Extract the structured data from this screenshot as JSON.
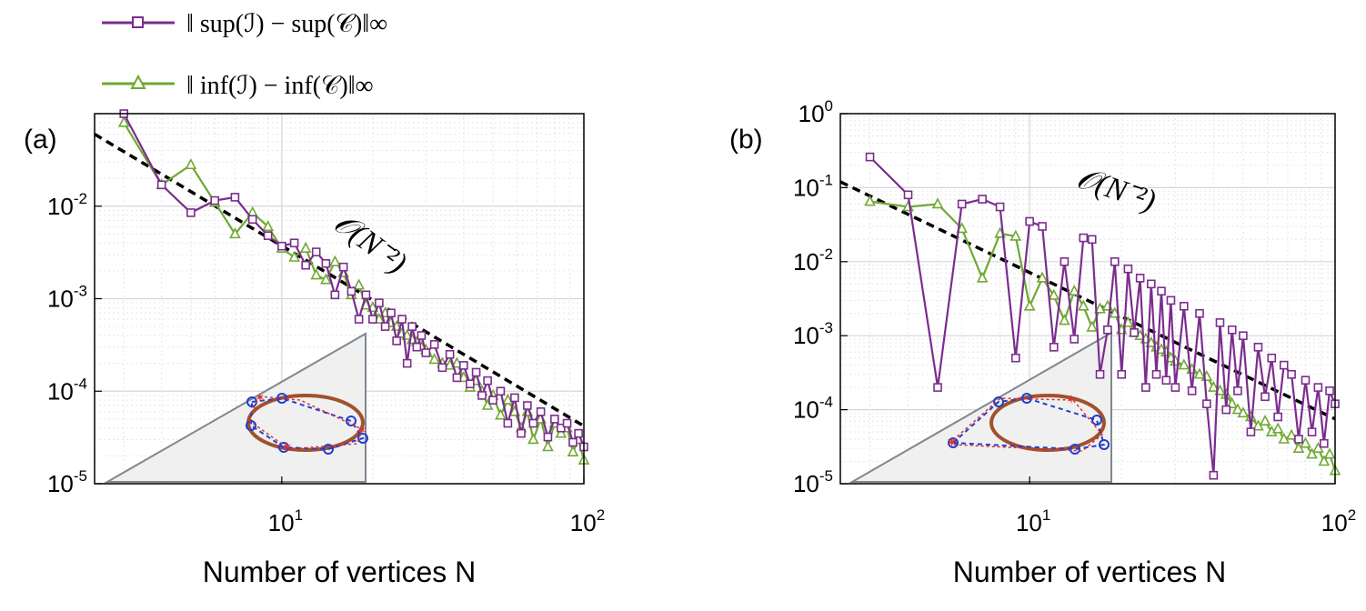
{
  "legend": {
    "items": [
      {
        "label": "‖ sup(ℐ) − sup(𝒞)‖∞",
        "color": "#7b2d8e",
        "marker": "square"
      },
      {
        "label": "‖ inf(ℐ) − inf(𝒞)‖∞",
        "color": "#6fa832",
        "marker": "triangle"
      }
    ]
  },
  "chart_data": [
    {
      "panel_label": "(a)",
      "type": "line",
      "x_scale": "log",
      "y_scale": "log",
      "xlim": [
        2.4,
        100
      ],
      "ylim": [
        1e-05,
        0.1
      ],
      "xlabel": "Number of vertices N",
      "ylabel": "",
      "x_ticks": [
        {
          "base": "10",
          "exp": "1",
          "value": 10
        },
        {
          "base": "10",
          "exp": "2",
          "value": 100
        }
      ],
      "y_ticks": [
        {
          "base": "10",
          "exp": "-2",
          "value": 0.01
        },
        {
          "base": "10",
          "exp": "-3",
          "value": 0.001
        },
        {
          "base": "10",
          "exp": "-4",
          "value": 0.0001
        },
        {
          "base": "10",
          "exp": "-5",
          "value": 1e-05
        }
      ],
      "grid": true,
      "annotation": "𝒪(N⁻²)",
      "reference_line": {
        "style": "dashed",
        "color": "#000000",
        "x": [
          2.4,
          100
        ],
        "y": [
          0.06,
          4.2e-05
        ]
      },
      "series": [
        {
          "color": "#7b2d8e",
          "marker": "square",
          "x": [
            3,
            4,
            5,
            6,
            7,
            8,
            9,
            10,
            11,
            12,
            13,
            14,
            15,
            16,
            17,
            18,
            19,
            20,
            21,
            22,
            23,
            24,
            25,
            26,
            27,
            28,
            29,
            30,
            32,
            34,
            36,
            38,
            40,
            42,
            44,
            46,
            48,
            50,
            53,
            56,
            59,
            62,
            65,
            68,
            72,
            76,
            80,
            84,
            88,
            92,
            96,
            100
          ],
          "y": [
            0.1,
            0.017,
            0.0085,
            0.0115,
            0.0125,
            0.0072,
            0.0048,
            0.0037,
            0.004,
            0.0023,
            0.0032,
            0.0024,
            0.0011,
            0.0022,
            0.0012,
            0.0006,
            0.0011,
            0.0006,
            0.0009,
            0.0005,
            0.0007,
            0.00035,
            0.0006,
            0.0002,
            0.0005,
            0.0003,
            0.0004,
            0.00026,
            0.00032,
            0.00018,
            0.00025,
            0.00014,
            0.00019,
            0.00012,
            0.00016,
            9e-05,
            0.00013,
            8e-05,
            0.0001,
            4.5e-05,
            8.5e-05,
            3.5e-05,
            7e-05,
            4.5e-05,
            6e-05,
            3.2e-05,
            5e-05,
            4e-05,
            4.5e-05,
            2.8e-05,
            3.5e-05,
            2.5e-05
          ]
        },
        {
          "color": "#6fa832",
          "marker": "triangle",
          "x": [
            3,
            4,
            5,
            6,
            7,
            8,
            9,
            10,
            11,
            12,
            13,
            14,
            15,
            16,
            17,
            18,
            19,
            20,
            21,
            22,
            23,
            24,
            25,
            26,
            27,
            28,
            29,
            30,
            32,
            34,
            36,
            38,
            40,
            42,
            44,
            46,
            48,
            50,
            53,
            56,
            59,
            62,
            65,
            68,
            72,
            76,
            80,
            84,
            88,
            92,
            96,
            100
          ],
          "y": [
            0.08,
            0.017,
            0.028,
            0.011,
            0.005,
            0.0085,
            0.006,
            0.0035,
            0.0028,
            0.0035,
            0.0018,
            0.0016,
            0.0025,
            0.0019,
            0.0011,
            0.0014,
            0.00085,
            0.0008,
            0.0006,
            0.0007,
            0.00055,
            0.0005,
            0.00042,
            0.0004,
            0.00036,
            0.00034,
            0.0003,
            0.00028,
            0.00022,
            0.0002,
            0.00019,
            0.0002,
            0.00014,
            0.00011,
            0.00013,
            0.0001,
            7e-05,
            9e-05,
            5.5e-05,
            8e-05,
            6e-05,
            4e-05,
            6e-05,
            3e-05,
            5e-05,
            2.5e-05,
            4.5e-05,
            3.5e-05,
            4e-05,
            2.2e-05,
            3e-05,
            1.8e-05
          ]
        }
      ]
    },
    {
      "panel_label": "(b)",
      "type": "line",
      "x_scale": "log",
      "y_scale": "log",
      "xlim": [
        2.4,
        100
      ],
      "ylim": [
        1e-05,
        1
      ],
      "xlabel": "Number of vertices N",
      "ylabel": "",
      "x_ticks": [
        {
          "base": "10",
          "exp": "1",
          "value": 10
        },
        {
          "base": "10",
          "exp": "2",
          "value": 100
        }
      ],
      "y_ticks": [
        {
          "base": "10",
          "exp": "0",
          "value": 1
        },
        {
          "base": "10",
          "exp": "-1",
          "value": 0.1
        },
        {
          "base": "10",
          "exp": "-2",
          "value": 0.01
        },
        {
          "base": "10",
          "exp": "-3",
          "value": 0.001
        },
        {
          "base": "10",
          "exp": "-4",
          "value": 0.0001
        },
        {
          "base": "10",
          "exp": "-5",
          "value": 1e-05
        }
      ],
      "grid": true,
      "annotation": "𝒪(N⁻²)",
      "reference_line": {
        "style": "dashed",
        "color": "#000000",
        "x": [
          2.4,
          100
        ],
        "y": [
          0.12,
          7.5e-05
        ]
      },
      "series": [
        {
          "color": "#7b2d8e",
          "marker": "square",
          "x": [
            3,
            4,
            5,
            6,
            7,
            8,
            9,
            10,
            11,
            12,
            13,
            14,
            15,
            16,
            17,
            18,
            19,
            20,
            21,
            22,
            23,
            24,
            25,
            26,
            27,
            28,
            29,
            30,
            32,
            34,
            36,
            38,
            40,
            42,
            44,
            46,
            48,
            50,
            53,
            56,
            59,
            62,
            65,
            68,
            72,
            76,
            80,
            84,
            88,
            92,
            96,
            100
          ],
          "y": [
            0.26,
            0.08,
            0.0002,
            0.06,
            0.07,
            0.055,
            0.0005,
            0.035,
            0.03,
            0.0007,
            0.01,
            0.0009,
            0.021,
            0.02,
            0.0003,
            0.0012,
            0.01,
            0.0003,
            0.008,
            0.0011,
            0.006,
            0.0002,
            0.005,
            0.0003,
            0.004,
            0.00025,
            0.003,
            0.0002,
            0.0025,
            0.00018,
            0.002,
            0.00012,
            1.3e-05,
            0.0015,
            0.0001,
            0.0012,
            0.00018,
            0.001,
            5e-05,
            0.0007,
            0.00015,
            0.0005,
            8e-05,
            0.0004,
            0.0003,
            4e-05,
            0.00025,
            5e-05,
            0.0002,
            3.5e-05,
            0.00018,
            0.00012
          ]
        },
        {
          "color": "#6fa832",
          "marker": "triangle",
          "x": [
            3,
            4,
            5,
            6,
            7,
            8,
            9,
            10,
            11,
            12,
            13,
            14,
            15,
            16,
            17,
            18,
            19,
            20,
            21,
            22,
            23,
            24,
            25,
            26,
            27,
            28,
            29,
            30,
            32,
            34,
            36,
            38,
            40,
            42,
            44,
            46,
            48,
            50,
            53,
            56,
            59,
            62,
            65,
            68,
            72,
            76,
            80,
            84,
            88,
            92,
            96,
            100
          ],
          "y": [
            0.065,
            0.055,
            0.06,
            0.028,
            0.006,
            0.024,
            0.022,
            0.0025,
            0.006,
            0.0035,
            0.0016,
            0.004,
            0.0025,
            0.0013,
            0.0023,
            0.0025,
            0.002,
            0.0012,
            0.0015,
            0.0011,
            0.001,
            0.0009,
            0.0008,
            0.0007,
            0.00065,
            0.0006,
            0.0005,
            0.00045,
            0.0004,
            0.00035,
            0.0003,
            0.00028,
            0.0002,
            0.00018,
            0.00016,
            0.00012,
            0.0001,
            9e-05,
            8e-05,
            6e-05,
            7e-05,
            5e-05,
            5.5e-05,
            4e-05,
            4.5e-05,
            3e-05,
            3.5e-05,
            2.5e-05,
            3e-05,
            2e-05,
            2.5e-05,
            1.5e-05
          ]
        }
      ]
    }
  ]
}
